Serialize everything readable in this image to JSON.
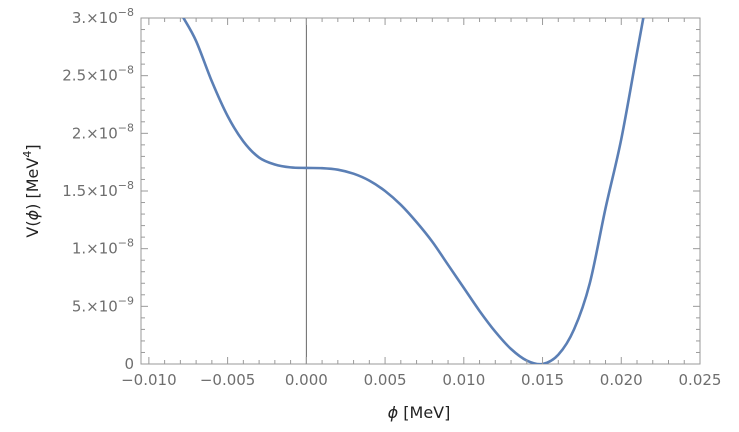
{
  "chart_data": {
    "type": "line",
    "title": "",
    "xlabel": {
      "symbol": "ϕ",
      "unit": " [MeV]"
    },
    "ylabel": {
      "prefix": "V(",
      "symbol": "ϕ",
      "mid": ") [MeV",
      "sup": "4",
      "suffix": "]"
    },
    "xlim": [
      -0.0105,
      0.025
    ],
    "ylim": [
      0,
      3e-08
    ],
    "x_ticks": [
      {
        "value": -0.01,
        "label": "−0.010"
      },
      {
        "value": -0.005,
        "label": "−0.005"
      },
      {
        "value": 0.0,
        "label": "0.000"
      },
      {
        "value": 0.005,
        "label": "0.005"
      },
      {
        "value": 0.01,
        "label": "0.010"
      },
      {
        "value": 0.015,
        "label": "0.015"
      },
      {
        "value": 0.02,
        "label": "0.020"
      },
      {
        "value": 0.025,
        "label": "0.025"
      }
    ],
    "y_ticks": [
      {
        "value": 0,
        "mant": "0",
        "exp": ""
      },
      {
        "value": 5e-09,
        "mant": "5.×10",
        "exp": "−9"
      },
      {
        "value": 1e-08,
        "mant": "1.×10",
        "exp": "−8"
      },
      {
        "value": 1.5e-08,
        "mant": "1.5×10",
        "exp": "−8"
      },
      {
        "value": 2e-08,
        "mant": "2.×10",
        "exp": "−8"
      },
      {
        "value": 2.5e-08,
        "mant": "2.5×10",
        "exp": "−8"
      },
      {
        "value": 3e-08,
        "mant": "3.×10",
        "exp": "−8"
      }
    ],
    "grid": false,
    "series": [
      {
        "color": "#5b7fb5",
        "points": [
          {
            "x": -0.0078,
            "y": 3e-08
          },
          {
            "x": -0.007,
            "y": 2.8e-08
          },
          {
            "x": -0.006,
            "y": 2.45e-08
          },
          {
            "x": -0.005,
            "y": 2.15e-08
          },
          {
            "x": -0.004,
            "y": 1.93e-08
          },
          {
            "x": -0.003,
            "y": 1.79e-08
          },
          {
            "x": -0.002,
            "y": 1.73e-08
          },
          {
            "x": -0.001,
            "y": 1.705e-08
          },
          {
            "x": 0.0,
            "y": 1.7e-08
          },
          {
            "x": 0.001,
            "y": 1.698e-08
          },
          {
            "x": 0.002,
            "y": 1.685e-08
          },
          {
            "x": 0.003,
            "y": 1.65e-08
          },
          {
            "x": 0.004,
            "y": 1.59e-08
          },
          {
            "x": 0.005,
            "y": 1.5e-08
          },
          {
            "x": 0.006,
            "y": 1.38e-08
          },
          {
            "x": 0.007,
            "y": 1.23e-08
          },
          {
            "x": 0.008,
            "y": 1.06e-08
          },
          {
            "x": 0.009,
            "y": 8.6e-09
          },
          {
            "x": 0.01,
            "y": 6.6e-09
          },
          {
            "x": 0.011,
            "y": 4.6e-09
          },
          {
            "x": 0.012,
            "y": 2.8e-09
          },
          {
            "x": 0.013,
            "y": 1.3e-09
          },
          {
            "x": 0.014,
            "y": 3e-10
          },
          {
            "x": 0.015,
            "y": 0.0
          },
          {
            "x": 0.016,
            "y": 8e-10
          },
          {
            "x": 0.017,
            "y": 3e-09
          },
          {
            "x": 0.018,
            "y": 7e-09
          },
          {
            "x": 0.019,
            "y": 1.35e-08
          },
          {
            "x": 0.02,
            "y": 1.95e-08
          },
          {
            "x": 0.021,
            "y": 2.7e-08
          },
          {
            "x": 0.0214,
            "y": 3e-08
          }
        ]
      }
    ]
  }
}
